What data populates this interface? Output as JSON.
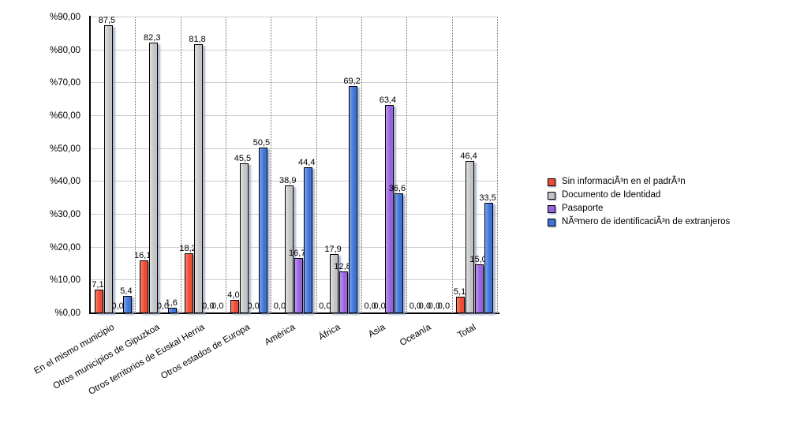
{
  "chart_data": {
    "type": "bar",
    "title": "",
    "xlabel": "",
    "ylabel": "",
    "categories": [
      "En el mismo municipio",
      "Otros municipios de Gipuzkoa",
      "Otros territorios de Euskal Herria",
      "Otros estados de Europa",
      "América",
      "África",
      "Asia",
      "Oceanía",
      "Total"
    ],
    "series": [
      {
        "name": "Sin informaciÃ³n en el padrÃ³n",
        "color": "#EE4B35",
        "highlight": "#F4826C",
        "values": [
          7.1,
          16.1,
          18.2,
          4.0,
          0.0,
          0.0,
          0.0,
          0.0,
          5.1
        ],
        "labels": [
          "7,1",
          "16,1",
          "18,2",
          "4,0",
          "0,0",
          "0,0",
          "0,0",
          "0,0",
          "5,1"
        ]
      },
      {
        "name": "Documento de Identidad",
        "color": "#C3C3C3",
        "highlight": "#E1E1E1",
        "values": [
          87.5,
          82.3,
          81.8,
          45.5,
          38.9,
          17.9,
          0.0,
          0.0,
          46.4
        ],
        "labels": [
          "87,5",
          "82,3",
          "81,8",
          "45,5",
          "38,9",
          "17,9",
          "0,0",
          "0,0",
          "46,4"
        ]
      },
      {
        "name": "Pasaporte",
        "color": "#9763DE",
        "highlight": "#BB96EC",
        "values": [
          0.0,
          0.0,
          0.0,
          0.0,
          16.7,
          12.8,
          63.4,
          0.0,
          15.0
        ],
        "labels": [
          "0,0",
          "0,0",
          "0,0",
          "0,0",
          "16,7",
          "12,8",
          "63,4",
          "0,0",
          "15,0"
        ]
      },
      {
        "name": "NÃºmero de identificaciÃ³n de extranjeros",
        "color": "#3E74D8",
        "highlight": "#7CA2EA",
        "values": [
          5.4,
          1.6,
          0.0,
          50.5,
          44.4,
          69.2,
          36.6,
          0.0,
          33.5
        ],
        "labels": [
          "5,4",
          "1,6",
          "0,0",
          "50,5",
          "44,4",
          "69,2",
          "36,6",
          "0,0",
          "33,5"
        ]
      }
    ],
    "ylim": [
      0,
      90
    ],
    "yticks": [
      {
        "value": 0,
        "label": "%0,00"
      },
      {
        "value": 10,
        "label": "%10,00"
      },
      {
        "value": 20,
        "label": "%20,00"
      },
      {
        "value": 30,
        "label": "%30,00"
      },
      {
        "value": 40,
        "label": "%40,00"
      },
      {
        "value": 50,
        "label": "%50,00"
      },
      {
        "value": 60,
        "label": "%60,00"
      },
      {
        "value": 70,
        "label": "%70,00"
      },
      {
        "value": 80,
        "label": "%80,00"
      },
      {
        "value": 90,
        "label": "%90,00"
      }
    ],
    "grid": {
      "horizontal": "solid",
      "vertical": "dotted category separators"
    },
    "legend_position": "right"
  },
  "colors": {
    "axis": "#000000",
    "gridline": "#CDCDCD",
    "separator": "#6E6E6E",
    "background": "#FFFFFF",
    "bar_border": "#000000",
    "shadow": "rgba(145,158,190,0.75)"
  }
}
